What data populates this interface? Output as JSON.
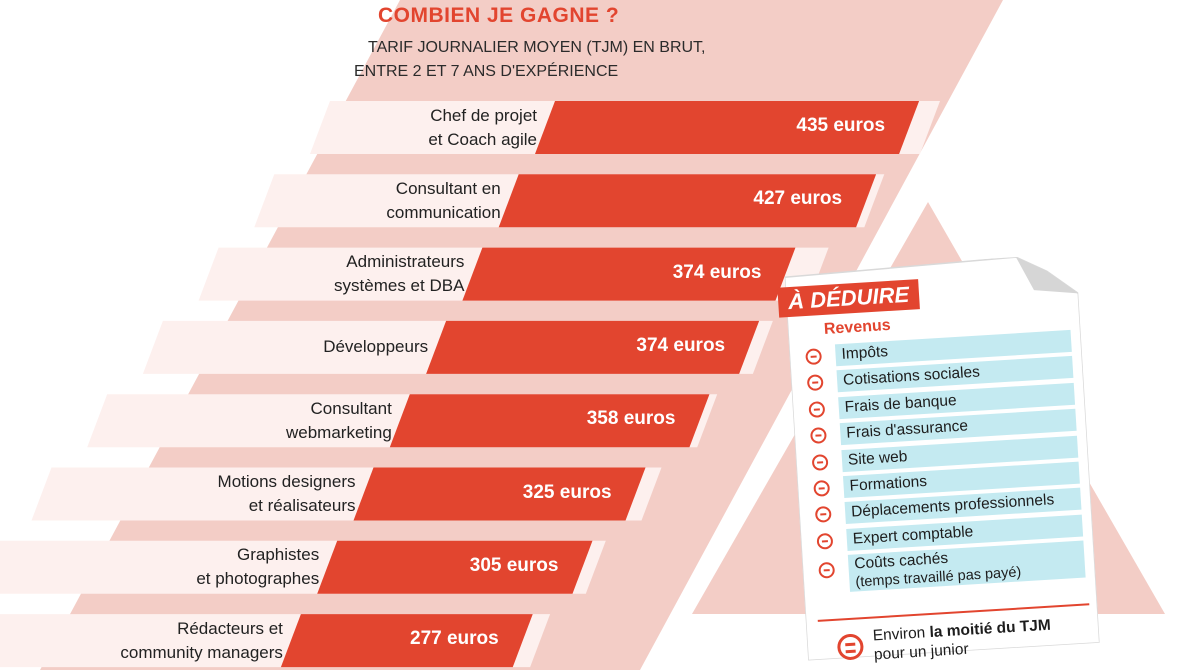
{
  "chart_data": {
    "type": "bar",
    "title": "COMBIEN JE GAGNE ?",
    "subtitle_lines": [
      "TARIF JOURNALIER MOYEN (TJM) EN BRUT,",
      "ENTRE 2 ET 7 ANS D'EXPÉRIENCE"
    ],
    "categories": [
      [
        "Chef de projet",
        "et Coach agile"
      ],
      [
        "Consultant en",
        "communication"
      ],
      [
        "Administrateurs",
        "systèmes et DBA"
      ],
      [
        "Développeurs"
      ],
      [
        "Consultant",
        "webmarketing"
      ],
      [
        "Motions designers",
        "et réalisateurs"
      ],
      [
        "Graphistes",
        "et photographes"
      ],
      [
        "Rédacteurs et",
        "community managers"
      ]
    ],
    "values": [
      435,
      427,
      374,
      374,
      358,
      325,
      305,
      277
    ],
    "value_labels": [
      "435 euros",
      "427 euros",
      "374 euros",
      "374 euros",
      "358 euros",
      "325 euros",
      "305 euros",
      "277 euros"
    ],
    "unit": "euros"
  },
  "deductions": {
    "title": "À DÉDUIRE",
    "subtitle": "Revenus",
    "items": [
      "Impôts",
      "Cotisations sociales",
      "Frais de banque",
      "Frais d'assurance",
      "Site web",
      "Formations",
      "Déplacements professionnels",
      "Expert comptable"
    ],
    "last_item": {
      "line1": "Coûts cachés",
      "line2": "(temps travaillé pas payé)"
    },
    "summary": {
      "prefix": "Environ ",
      "bold": "la moitié du TJM",
      "line2": "pour un junior"
    }
  },
  "colors": {
    "accent": "#e2452f",
    "band": "#f3cdc6",
    "row": "#fdf0ee",
    "note_item": "#c4eaf1"
  }
}
